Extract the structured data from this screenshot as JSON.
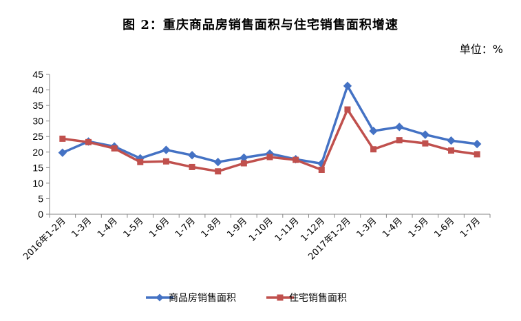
{
  "unit": "单位：%",
  "chart_data": {
    "type": "line",
    "title": "图 2：重庆商品房销售面积与住宅销售面积增速",
    "xlabel": "",
    "ylabel": "",
    "ylim": [
      0,
      45
    ],
    "yticks": [
      0,
      5,
      10,
      15,
      20,
      25,
      30,
      35,
      40,
      45
    ],
    "grid": false,
    "legend_position": "bottom",
    "categories": [
      "2016年1-2月",
      "1-3月",
      "1-4月",
      "1-5月",
      "1-6月",
      "1-7月",
      "1-8月",
      "1-9月",
      "1-10月",
      "1-11月",
      "1-12月",
      "2017年1-2月",
      "1-3月",
      "1-4月",
      "1-5月",
      "1-6月",
      "1-7月"
    ],
    "series": [
      {
        "name": "商品房销售面积",
        "color": "#4472C4",
        "marker": "diamond",
        "values": [
          19.8,
          23.4,
          21.8,
          18.0,
          20.7,
          19.0,
          16.8,
          18.2,
          19.5,
          17.7,
          16.3,
          41.3,
          26.8,
          28.1,
          25.6,
          23.7,
          22.6
        ]
      },
      {
        "name": "住宅销售面积",
        "color": "#C0504D",
        "marker": "square",
        "values": [
          24.3,
          23.2,
          21.2,
          16.8,
          17.0,
          15.2,
          13.8,
          16.4,
          18.4,
          17.5,
          14.3,
          33.7,
          20.9,
          23.8,
          22.8,
          20.5,
          19.3
        ]
      }
    ]
  }
}
